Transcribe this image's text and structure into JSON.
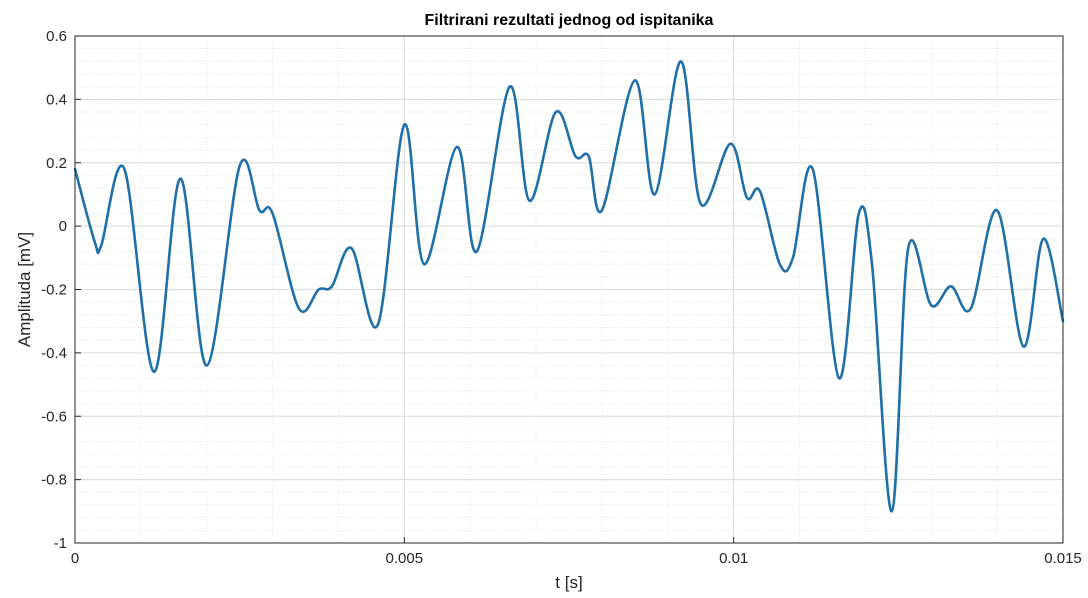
{
  "chart_data": {
    "type": "line",
    "title": "Filtrirani rezultati jednog od ispitanika",
    "xlabel": "t [s]",
    "ylabel": "Amplituda [mV]",
    "xlim": [
      0,
      0.015
    ],
    "ylim": [
      -1,
      0.6
    ],
    "xticks": [
      0,
      0.005,
      0.01,
      0.015
    ],
    "xtick_labels": [
      "0",
      "0.005",
      "0.01",
      "0.015"
    ],
    "yticks": [
      -1,
      -0.8,
      -0.6,
      -0.4,
      -0.2,
      0,
      0.2,
      0.4,
      0.6
    ],
    "ytick_labels": [
      "-1",
      "-0.8",
      "-0.6",
      "-0.4",
      "-0.2",
      "0",
      "0.2",
      "0.4",
      "0.6"
    ],
    "grid": true,
    "minor_grid": true,
    "series": [
      {
        "color": "#1f6fa8",
        "x": [
          0,
          0.0003,
          0.0004,
          0.00075,
          0.0012,
          0.0016,
          0.002,
          0.0025,
          0.0028,
          0.003,
          0.0034,
          0.0037,
          0.0039,
          0.0042,
          0.0046,
          0.005,
          0.0053,
          0.0058,
          0.0061,
          0.0066,
          0.0069,
          0.0073,
          0.0076,
          0.0078,
          0.008,
          0.0085,
          0.0088,
          0.0092,
          0.0095,
          0.00995,
          0.0102,
          0.0104,
          0.0107,
          0.0109,
          0.0112,
          0.0116,
          0.0119,
          0.0121,
          0.0124,
          0.01265,
          0.013,
          0.0133,
          0.0136,
          0.014,
          0.0144,
          0.0147,
          0.015
        ],
        "y": [
          0.18,
          -0.05,
          -0.06,
          0.18,
          -0.46,
          0.15,
          -0.44,
          0.19,
          0.05,
          0.04,
          -0.26,
          -0.2,
          -0.19,
          -0.07,
          -0.31,
          0.32,
          -0.12,
          0.25,
          -0.08,
          0.44,
          0.08,
          0.36,
          0.22,
          0.22,
          0.05,
          0.46,
          0.1,
          0.52,
          0.07,
          0.26,
          0.09,
          0.11,
          -0.12,
          -0.1,
          0.18,
          -0.48,
          0.04,
          -0.12,
          -0.9,
          -0.07,
          -0.25,
          -0.19,
          -0.26,
          0.05,
          -0.38,
          -0.04,
          -0.3
        ]
      }
    ]
  }
}
